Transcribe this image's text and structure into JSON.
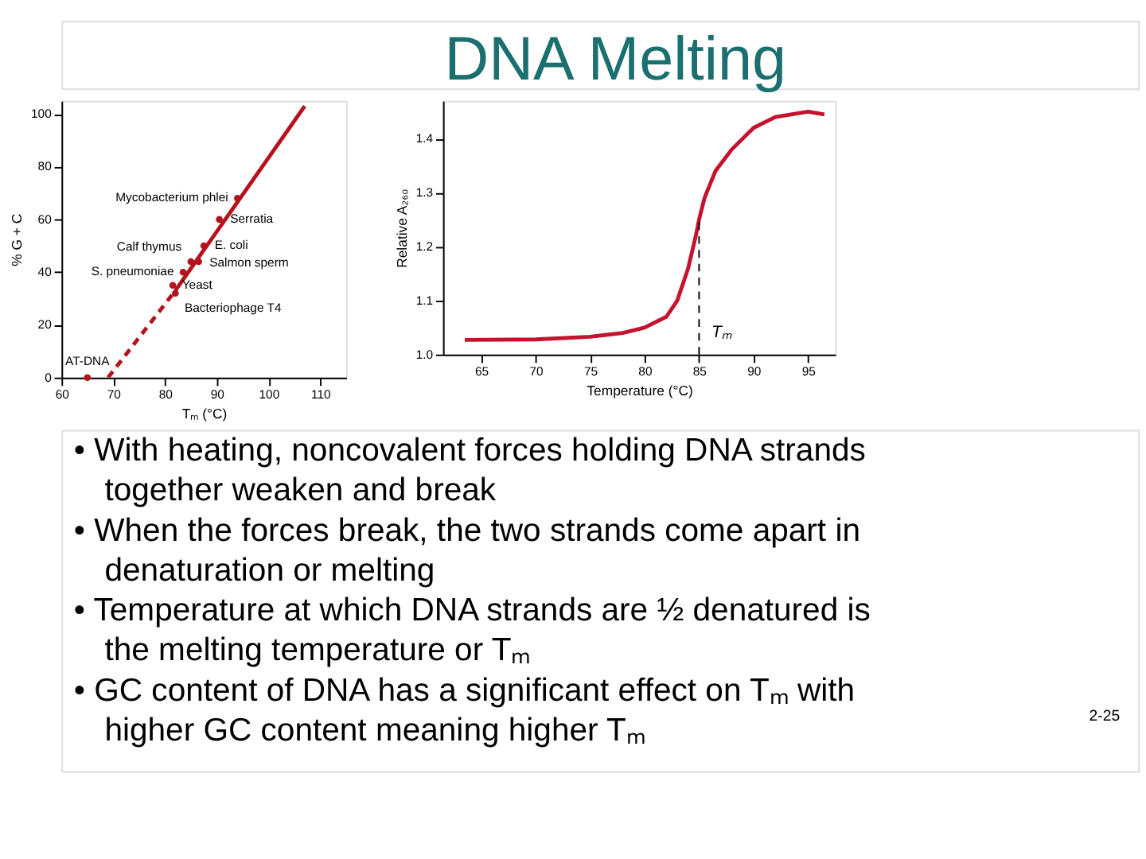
{
  "chart_data": [
    {
      "type": "scatter",
      "xlabel": "Tₘ (°C)",
      "ylabel": "% G + C",
      "xlim": [
        60,
        115
      ],
      "xticks": [
        60,
        70,
        80,
        90,
        100,
        110
      ],
      "ylim": [
        0,
        105
      ],
      "yticks": [
        0,
        20,
        40,
        60,
        80,
        100
      ],
      "grid": false,
      "series": [
        {
          "type": "scatter",
          "marker": "circle",
          "color": "#b5121b",
          "x": [
            65,
            82,
            81.5,
            83.5,
            85,
            86.5,
            87.5,
            90.5,
            94
          ],
          "values": [
            0,
            32,
            35,
            40,
            44,
            44,
            50,
            60,
            68
          ]
        },
        {
          "type": "line",
          "color": "#b5121b",
          "line_style": "dashed",
          "x": [
            69,
            82
          ],
          "values": [
            0,
            33
          ]
        },
        {
          "type": "line",
          "color": "#b5121b",
          "line_style": "solid",
          "x": [
            82,
            107
          ],
          "values": [
            33,
            103
          ]
        }
      ],
      "annotations": [
        {
          "text": "AT-DNA",
          "x": 65,
          "y": 0
        },
        {
          "text": "Bacteriophage T4",
          "x": 82,
          "y": 32
        },
        {
          "text": "Yeast",
          "x": 81.5,
          "y": 35
        },
        {
          "text": "S. pneumoniae",
          "x": 83.5,
          "y": 40
        },
        {
          "text": "Calf thymus",
          "x": 85,
          "y": 44
        },
        {
          "text": "Salmon sperm",
          "x": 86.5,
          "y": 44
        },
        {
          "text": "E. coli",
          "x": 87.5,
          "y": 50
        },
        {
          "text": "Serratia",
          "x": 90.5,
          "y": 60
        },
        {
          "text": "Mycobacterium phlei",
          "x": 94,
          "y": 68
        }
      ]
    },
    {
      "type": "line",
      "xlabel": "Temperature (°C)",
      "ylabel": "Relative A₂₆₀",
      "xlim": [
        61.5,
        97.5
      ],
      "xticks": [
        65,
        70,
        75,
        80,
        85,
        90,
        95
      ],
      "ylim": [
        1.0,
        1.47
      ],
      "yticks": [
        {
          "value": 1.0,
          "label": "1.0"
        },
        1.1,
        1.2,
        1.3,
        1.4
      ],
      "grid": false,
      "line_style": "solid",
      "series": [
        {
          "color": "#c4122f",
          "x": [
            63.5,
            70,
            75,
            78,
            80,
            82,
            83,
            84,
            84.7,
            85,
            85.5,
            86.5,
            88,
            90,
            92,
            95,
            96.5
          ],
          "values": [
            1.027,
            1.028,
            1.033,
            1.04,
            1.05,
            1.07,
            1.1,
            1.16,
            1.22,
            1.25,
            1.29,
            1.34,
            1.38,
            1.42,
            1.44,
            1.45,
            1.445
          ]
        }
      ],
      "ref_lines": [
        {
          "axis": "x",
          "value": 85,
          "label": "Tₘ",
          "line_style": "dashed",
          "color": "#000000"
        }
      ]
    },
    {
      "type": "other",
      "title": "DNA Melting",
      "annotations": [
        "• With heating, noncovalent forces holding DNA strands together weaken and break",
        "• When the forces break, the two strands come apart in denaturation or melting",
        "• Temperature at which DNA strands are ½ denatured is the melting temperature or Tₘ",
        "• GC content of DNA has a significant effect on Tₘ with higher GC content meaning higher Tₘ",
        "2-25"
      ]
    }
  ]
}
